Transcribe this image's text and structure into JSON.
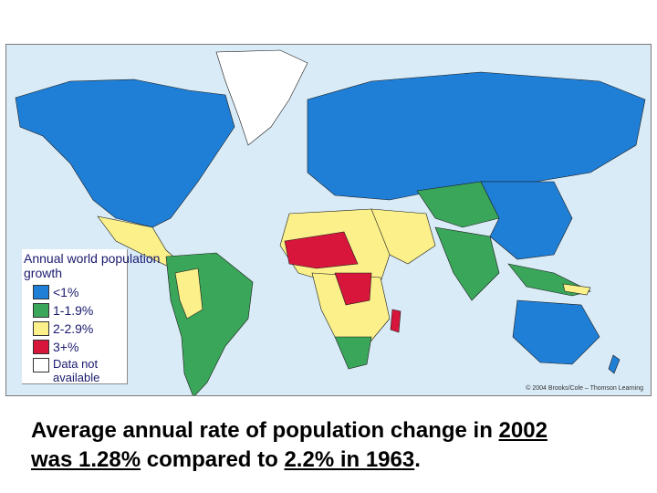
{
  "legend": {
    "title": "Annual world population growth",
    "items": [
      {
        "label": "<1%",
        "color": "#1f7fd6"
      },
      {
        "label": "1-1.9%",
        "color": "#3aa65a"
      },
      {
        "label": "2-2.9%",
        "color": "#fbf08a"
      },
      {
        "label": "3+%",
        "color": "#d8163c"
      },
      {
        "label": "Data not available",
        "color": "#ffffff"
      }
    ]
  },
  "credit": "© 2004 Brooks/Cole – Thomson Learning",
  "colors": {
    "ocean": "#d9ebf7",
    "greenland": "#ffffff"
  },
  "caption": {
    "part1": "Average annual rate of population change in ",
    "year1": "2002",
    "part2_break": "",
    "rate1": "was 1.28%",
    "part3": " compared to ",
    "rate2": "2.2% in 1963",
    "end": "."
  }
}
